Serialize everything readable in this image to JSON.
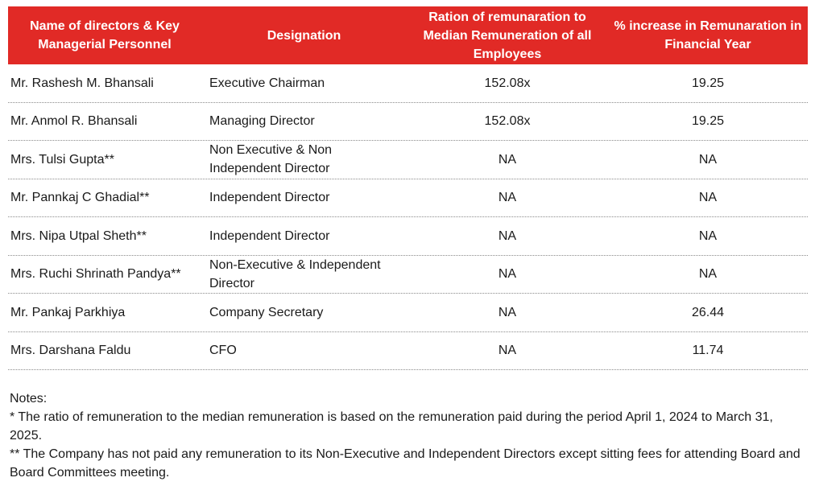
{
  "table": {
    "headers": [
      "Name of directors & Key Managerial Personnel",
      "Designation",
      "Ration of remunaration to Median Remuneration of all Employees",
      "% increase in Remunaration in Financial Year"
    ],
    "rows": [
      {
        "name": "Mr. Rashesh M. Bhansali",
        "designation": "Executive Chairman",
        "ratio": "152.08x",
        "increase": "19.25"
      },
      {
        "name": "Mr. Anmol R. Bhansali",
        "designation": "Managing Director",
        "ratio": "152.08x",
        "increase": "19.25"
      },
      {
        "name": "Mrs. Tulsi Gupta**",
        "designation": "Non Executive & Non Independent Director",
        "ratio": "NA",
        "increase": "NA"
      },
      {
        "name": "Mr. Pannkaj C Ghadial**",
        "designation": "Independent Director",
        "ratio": "NA",
        "increase": "NA"
      },
      {
        "name": "Mrs. Nipa Utpal Sheth**",
        "designation": "Independent Director",
        "ratio": "NA",
        "increase": "NA"
      },
      {
        "name": "Mrs. Ruchi Shrinath Pandya**",
        "designation": "Non-Executive & Independent Director",
        "ratio": "NA",
        "increase": "NA"
      },
      {
        "name": "Mr. Pankaj Parkhiya",
        "designation": "Company Secretary",
        "ratio": "NA",
        "increase": "26.44"
      },
      {
        "name": "Mrs. Darshana Faldu",
        "designation": "CFO",
        "ratio": "NA",
        "increase": "11.74"
      }
    ]
  },
  "notes": {
    "title": "Notes:",
    "note1": "* The ratio of remuneration to the median remuneration is based on the remuneration paid during the period April 1, 2024 to March 31, 2025.",
    "note2": "** The Company has not paid any remuneration to its Non-Executive and Independent Directors except sitting fees for attending Board and Board Committees meeting."
  },
  "colors": {
    "header_bg": "#e12a26",
    "header_text": "#ffffff"
  }
}
